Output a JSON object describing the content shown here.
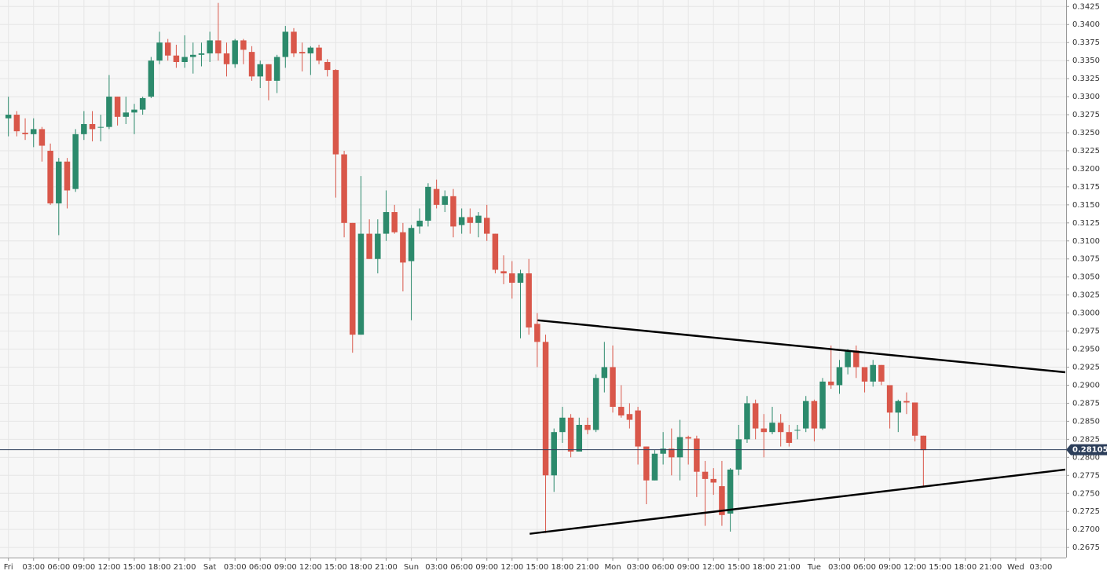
{
  "chart_data": {
    "type": "candlestick",
    "x": [
      0,
      1,
      2,
      3,
      4,
      5,
      6,
      7,
      8,
      9,
      10,
      11,
      12,
      13,
      14,
      15,
      16,
      17,
      18,
      19,
      20,
      21,
      22,
      23,
      24,
      25,
      26,
      27,
      28,
      29,
      30,
      31,
      32,
      33,
      34,
      35,
      36,
      37,
      38,
      39,
      40,
      41,
      42,
      43,
      44,
      45,
      46,
      47,
      48,
      49,
      50,
      51,
      52,
      53,
      54,
      55,
      56,
      57,
      58,
      59,
      60,
      61,
      62,
      63,
      64,
      65,
      66,
      67,
      68,
      69,
      70,
      71,
      72,
      73,
      74,
      75,
      76,
      77,
      78,
      79,
      80,
      81,
      82,
      83,
      84,
      85,
      86,
      87,
      88,
      89,
      90,
      91,
      92,
      93,
      94,
      95,
      96,
      97,
      98,
      99,
      100,
      101,
      102,
      103,
      104,
      105,
      106,
      107,
      108,
      109
    ],
    "open": [
      0.327,
      0.3275,
      0.325,
      0.3248,
      0.3255,
      0.3225,
      0.3152,
      0.321,
      0.3172,
      0.3248,
      0.3262,
      0.3258,
      0.3258,
      0.33,
      0.3272,
      0.3278,
      0.3282,
      0.33,
      0.335,
      0.3375,
      0.3357,
      0.3348,
      0.3355,
      0.3358,
      0.336,
      0.3378,
      0.336,
      0.3345,
      0.3378,
      0.3362,
      0.3328,
      0.3345,
      0.3322,
      0.3355,
      0.339,
      0.3362,
      0.336,
      0.3368,
      0.3348,
      0.3337,
      0.322,
      0.3125,
      0.297,
      0.311,
      0.3075,
      0.311,
      0.314,
      0.3112,
      0.3072,
      0.312,
      0.3128,
      0.3172,
      0.315,
      0.3162,
      0.3122,
      0.3133,
      0.3125,
      0.3132,
      0.311,
      0.3058,
      0.3055,
      0.3042,
      0.3055,
      0.2985,
      0.296,
      0.2775,
      0.2835,
      0.2855,
      0.2808,
      0.2845,
      0.2838,
      0.291,
      0.2925,
      0.287,
      0.286,
      0.2865,
      0.2815,
      0.2768,
      0.2805,
      0.2812,
      0.28,
      0.2828,
      0.2826,
      0.278,
      0.277,
      0.276,
      0.2722,
      0.2783,
      0.2825,
      0.2875,
      0.284,
      0.2835,
      0.2848,
      0.2835,
      0.2838,
      0.284,
      0.2878,
      0.284,
      0.2905,
      0.29,
      0.2925,
      0.2948,
      0.2925,
      0.2905,
      0.2928,
      0.29,
      0.2862,
      0.2878,
      0.2876,
      0.283
    ],
    "high": [
      0.33,
      0.328,
      0.327,
      0.327,
      0.3258,
      0.3235,
      0.3215,
      0.3215,
      0.3255,
      0.328,
      0.328,
      0.3275,
      0.333,
      0.33,
      0.33,
      0.329,
      0.33,
      0.3355,
      0.339,
      0.338,
      0.3372,
      0.3385,
      0.3375,
      0.3375,
      0.339,
      0.343,
      0.3375,
      0.338,
      0.338,
      0.337,
      0.335,
      0.3345,
      0.3358,
      0.3398,
      0.3395,
      0.3375,
      0.337,
      0.3372,
      0.3352,
      0.3338,
      0.3225,
      0.3125,
      0.319,
      0.313,
      0.313,
      0.317,
      0.315,
      0.3125,
      0.3122,
      0.3145,
      0.318,
      0.3185,
      0.317,
      0.3172,
      0.3145,
      0.3145,
      0.314,
      0.315,
      0.311,
      0.308,
      0.3072,
      0.306,
      0.3075,
      0.3,
      0.297,
      0.284,
      0.287,
      0.286,
      0.2855,
      0.2855,
      0.2915,
      0.296,
      0.2955,
      0.29,
      0.2875,
      0.287,
      0.2815,
      0.281,
      0.2835,
      0.284,
      0.2852,
      0.283,
      0.283,
      0.2795,
      0.2785,
      0.2795,
      0.2785,
      0.2845,
      0.2885,
      0.288,
      0.286,
      0.287,
      0.286,
      0.2845,
      0.2845,
      0.2885,
      0.288,
      0.291,
      0.2955,
      0.2935,
      0.295,
      0.2955,
      0.2925,
      0.2935,
      0.2928,
      0.29,
      0.288,
      0.289,
      0.2876,
      0.283
    ],
    "low": [
      0.3245,
      0.3245,
      0.324,
      0.323,
      0.321,
      0.315,
      0.3108,
      0.3145,
      0.3168,
      0.324,
      0.3238,
      0.3238,
      0.3255,
      0.326,
      0.3262,
      0.3248,
      0.3275,
      0.3298,
      0.3345,
      0.335,
      0.334,
      0.334,
      0.3332,
      0.3342,
      0.3348,
      0.335,
      0.3328,
      0.334,
      0.3345,
      0.3322,
      0.3312,
      0.3295,
      0.3305,
      0.334,
      0.3355,
      0.3335,
      0.333,
      0.3345,
      0.3328,
      0.316,
      0.3105,
      0.2945,
      0.297,
      0.3075,
      0.3055,
      0.31,
      0.311,
      0.303,
      0.299,
      0.311,
      0.312,
      0.3145,
      0.314,
      0.3105,
      0.311,
      0.311,
      0.3105,
      0.31,
      0.3055,
      0.304,
      0.302,
      0.2965,
      0.297,
      0.2925,
      0.2695,
      0.2752,
      0.282,
      0.28,
      0.281,
      0.2832,
      0.2835,
      0.289,
      0.2862,
      0.2855,
      0.284,
      0.279,
      0.2735,
      0.2768,
      0.279,
      0.2775,
      0.2768,
      0.279,
      0.2745,
      0.2705,
      0.2748,
      0.2705,
      0.2697,
      0.2775,
      0.282,
      0.2825,
      0.28,
      0.2832,
      0.2815,
      0.2815,
      0.2825,
      0.2835,
      0.2822,
      0.2838,
      0.2895,
      0.2888,
      0.2915,
      0.291,
      0.289,
      0.2898,
      0.29,
      0.284,
      0.2835,
      0.286,
      0.2822,
      0.276
    ],
    "close": [
      0.3275,
      0.3252,
      0.3248,
      0.3255,
      0.3232,
      0.3152,
      0.321,
      0.317,
      0.3248,
      0.3262,
      0.3255,
      0.3258,
      0.33,
      0.3272,
      0.3278,
      0.3282,
      0.3298,
      0.335,
      0.3375,
      0.3357,
      0.3348,
      0.3355,
      0.3358,
      0.336,
      0.3378,
      0.336,
      0.3345,
      0.3378,
      0.3365,
      0.3328,
      0.3345,
      0.3322,
      0.3355,
      0.339,
      0.336,
      0.336,
      0.3368,
      0.335,
      0.3337,
      0.322,
      0.3125,
      0.297,
      0.311,
      0.3075,
      0.311,
      0.314,
      0.3112,
      0.307,
      0.3118,
      0.3128,
      0.3175,
      0.315,
      0.3162,
      0.312,
      0.3133,
      0.3125,
      0.3135,
      0.311,
      0.306,
      0.3055,
      0.3042,
      0.3055,
      0.298,
      0.296,
      0.2775,
      0.2835,
      0.2855,
      0.2808,
      0.2845,
      0.2838,
      0.291,
      0.2925,
      0.287,
      0.2858,
      0.2852,
      0.2815,
      0.2768,
      0.2805,
      0.2812,
      0.28,
      0.2828,
      0.2826,
      0.278,
      0.277,
      0.2765,
      0.272,
      0.2783,
      0.2825,
      0.2875,
      0.284,
      0.2835,
      0.2848,
      0.2835,
      0.282,
      0.2838,
      0.2878,
      0.284,
      0.2905,
      0.29,
      0.2925,
      0.2948,
      0.2925,
      0.2905,
      0.2928,
      0.2905,
      0.2862,
      0.2878,
      0.2876,
      0.283,
      0.281
    ],
    "up_color": "#2c8a6c",
    "down_color": "#d9574a",
    "trend_lines": [
      {
        "x": [
          63.05,
          125.9
        ],
        "y": [
          0.299,
          0.2918
        ],
        "color": "#000000"
      },
      {
        "x": [
          62.1,
          125.9
        ],
        "y": [
          0.2694,
          0.2783
        ],
        "color": "#000000"
      }
    ],
    "current_price": 0.281057,
    "current_price_color": "#2c3e5a",
    "xlim": [
      -1,
      126
    ],
    "ylim": [
      0.2661,
      0.3434
    ],
    "xticks": [
      {
        "value": 0,
        "label": "Fri"
      },
      {
        "value": 3,
        "label": "03:00"
      },
      {
        "value": 6,
        "label": "06:00"
      },
      {
        "value": 9,
        "label": "09:00"
      },
      {
        "value": 12,
        "label": "12:00"
      },
      {
        "value": 15,
        "label": "15:00"
      },
      {
        "value": 18,
        "label": "18:00"
      },
      {
        "value": 21,
        "label": "21:00"
      },
      {
        "value": 24,
        "label": "Sat"
      },
      {
        "value": 27,
        "label": "03:00"
      },
      {
        "value": 30,
        "label": "06:00"
      },
      {
        "value": 33,
        "label": "09:00"
      },
      {
        "value": 36,
        "label": "12:00"
      },
      {
        "value": 39,
        "label": "15:00"
      },
      {
        "value": 42,
        "label": "18:00"
      },
      {
        "value": 45,
        "label": "21:00"
      },
      {
        "value": 48,
        "label": "Sun"
      },
      {
        "value": 51,
        "label": "03:00"
      },
      {
        "value": 54,
        "label": "06:00"
      },
      {
        "value": 57,
        "label": "09:00"
      },
      {
        "value": 60,
        "label": "12:00"
      },
      {
        "value": 63,
        "label": "15:00"
      },
      {
        "value": 66,
        "label": "18:00"
      },
      {
        "value": 69,
        "label": "21:00"
      },
      {
        "value": 72,
        "label": "Mon"
      },
      {
        "value": 75,
        "label": "03:00"
      },
      {
        "value": 78,
        "label": "06:00"
      },
      {
        "value": 81,
        "label": "09:00"
      },
      {
        "value": 84,
        "label": "12:00"
      },
      {
        "value": 87,
        "label": "15:00"
      },
      {
        "value": 90,
        "label": "18:00"
      },
      {
        "value": 93,
        "label": "21:00"
      },
      {
        "value": 96,
        "label": "Tue"
      },
      {
        "value": 99,
        "label": "03:00"
      },
      {
        "value": 102,
        "label": "06:00"
      },
      {
        "value": 105,
        "label": "09:00"
      },
      {
        "value": 108,
        "label": "12:00"
      },
      {
        "value": 111,
        "label": "15:00"
      },
      {
        "value": 114,
        "label": "18:00"
      },
      {
        "value": 117,
        "label": "21:00"
      },
      {
        "value": 120,
        "label": "Wed"
      },
      {
        "value": 123,
        "label": "03:00"
      }
    ],
    "yticks": [
      0.2675,
      {
        "value": 0.27,
        "label": "0.2700"
      },
      0.2725,
      {
        "value": 0.275,
        "label": "0.2750"
      },
      0.2775,
      {
        "value": 0.28,
        "label": "0.2800"
      },
      0.2825,
      {
        "value": 0.285,
        "label": "0.2850"
      },
      0.2875,
      {
        "value": 0.29,
        "label": "0.2900"
      },
      0.2925,
      {
        "value": 0.295,
        "label": "0.2950"
      },
      0.2975,
      {
        "value": 0.3,
        "label": "0.3000"
      },
      0.3025,
      {
        "value": 0.305,
        "label": "0.3050"
      },
      0.3075,
      {
        "value": 0.31,
        "label": "0.3100"
      },
      0.3125,
      {
        "value": 0.315,
        "label": "0.3150"
      },
      0.3175,
      {
        "value": 0.32,
        "label": "0.3200"
      },
      0.3225,
      {
        "value": 0.325,
        "label": "0.3250"
      },
      0.3275,
      {
        "value": 0.33,
        "label": "0.3300"
      },
      0.3325,
      {
        "value": 0.335,
        "label": "0.3350"
      },
      0.3375,
      {
        "value": 0.34,
        "label": "0.3400"
      },
      0.3425
    ],
    "grid": true
  }
}
